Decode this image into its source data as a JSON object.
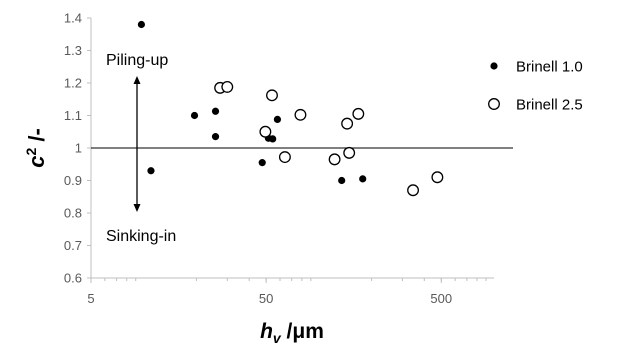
{
  "chart_data": {
    "type": "scatter",
    "xscale": "log",
    "xlim": [
      5,
      1000
    ],
    "ylim": [
      0.6,
      1.4
    ],
    "xticks": [
      "5",
      "50",
      "500"
    ],
    "yticks": [
      "0.6",
      "0.7",
      "0.8",
      "0.9",
      "1",
      "1.1",
      "1.2",
      "1.3",
      "1.4"
    ],
    "xlabel": {
      "main": "h",
      "sub": "v",
      "rest": " /μm"
    },
    "ylabel": {
      "main": "c",
      "sup": "2",
      "rest": " /-"
    },
    "grid": false,
    "legend": "right",
    "reference_line_y": 1,
    "annotations": [
      {
        "text": "Piling-up",
        "x": 5.6,
        "y": 1.29
      },
      {
        "text": "Sinking-in",
        "x": 5.6,
        "y": 0.72
      }
    ],
    "series": [
      {
        "name": "Brinell 1.0",
        "marker": "filled-circle",
        "color": "#000000",
        "points": [
          {
            "x": 9.7,
            "y": 1.38
          },
          {
            "x": 11.0,
            "y": 0.93
          },
          {
            "x": 19.5,
            "y": 1.1
          },
          {
            "x": 25.7,
            "y": 1.113
          },
          {
            "x": 25.7,
            "y": 1.035
          },
          {
            "x": 47.5,
            "y": 0.955
          },
          {
            "x": 51.5,
            "y": 1.03
          },
          {
            "x": 54.5,
            "y": 1.028
          },
          {
            "x": 58.0,
            "y": 1.088
          },
          {
            "x": 135.0,
            "y": 0.9
          },
          {
            "x": 178.0,
            "y": 0.905
          }
        ]
      },
      {
        "name": "Brinell 2.5",
        "marker": "open-circle",
        "color": "#000000",
        "points": [
          {
            "x": 27.3,
            "y": 1.185
          },
          {
            "x": 30.0,
            "y": 1.188
          },
          {
            "x": 49.5,
            "y": 1.05
          },
          {
            "x": 54.0,
            "y": 1.162
          },
          {
            "x": 64.0,
            "y": 0.972
          },
          {
            "x": 78.5,
            "y": 1.102
          },
          {
            "x": 123.0,
            "y": 0.965
          },
          {
            "x": 145.0,
            "y": 1.075
          },
          {
            "x": 149.0,
            "y": 0.985
          },
          {
            "x": 168.0,
            "y": 1.105
          },
          {
            "x": 345.0,
            "y": 0.87
          },
          {
            "x": 475.0,
            "y": 0.91
          }
        ]
      }
    ]
  }
}
